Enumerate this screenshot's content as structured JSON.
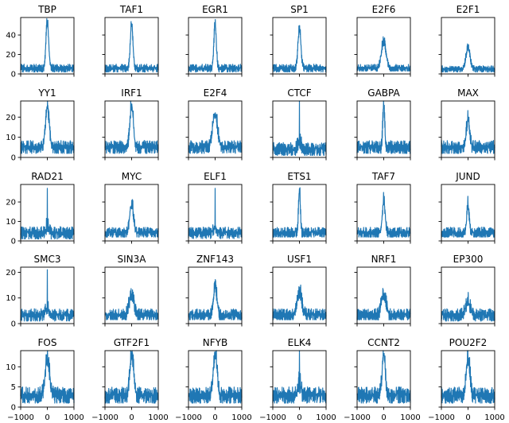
{
  "chart_data": {
    "type": "line",
    "layout": {
      "rows": 5,
      "cols": 6,
      "sharex": true,
      "sharey_per_row": true
    },
    "xlim": [
      -1000,
      1000
    ],
    "x_ticks": [
      -1000,
      0,
      1000
    ],
    "x_tick_labels": [
      "−1000",
      "0",
      "1000"
    ],
    "series_color": "#1f77b4",
    "rows": [
      {
        "ylim": [
          0,
          58
        ],
        "y_ticks": [
          0,
          20,
          40
        ],
        "y_tick_labels": [
          "0",
          "20",
          "40"
        ],
        "panels": [
          {
            "name": "TBP",
            "peak": 55,
            "baseline": 7,
            "noise": 5,
            "dip": 2,
            "width": 50,
            "spike": 0
          },
          {
            "name": "TAF1",
            "peak": 52,
            "baseline": 7,
            "noise": 5,
            "dip": 2,
            "width": 50,
            "spike": 0
          },
          {
            "name": "EGR1",
            "peak": 52,
            "baseline": 7,
            "noise": 5,
            "dip": 2,
            "width": 45,
            "spike": 0
          },
          {
            "name": "SP1",
            "peak": 47,
            "baseline": 7,
            "noise": 5,
            "dip": 2,
            "width": 55,
            "spike": 0
          },
          {
            "name": "E2F6",
            "peak": 34,
            "baseline": 7,
            "noise": 5,
            "dip": 3,
            "width": 90,
            "spike": 0
          },
          {
            "name": "E2F1",
            "peak": 28,
            "baseline": 6,
            "noise": 4,
            "dip": 2,
            "width": 75,
            "spike": 0
          }
        ]
      },
      {
        "ylim": [
          0,
          28
        ],
        "y_ticks": [
          0,
          10,
          20
        ],
        "y_tick_labels": [
          "0",
          "10",
          "20"
        ],
        "panels": [
          {
            "name": "YY1",
            "peak": 26,
            "baseline": 6,
            "noise": 4,
            "dip": 2,
            "width": 70,
            "spike": 0
          },
          {
            "name": "IRF1",
            "peak": 28,
            "baseline": 6,
            "noise": 4,
            "dip": 2,
            "width": 60,
            "spike": 0
          },
          {
            "name": "E2F4",
            "peak": 23,
            "baseline": 6,
            "noise": 4,
            "dip": 2,
            "width": 90,
            "spike": 0
          },
          {
            "name": "CTCF",
            "peak": 9,
            "baseline": 5,
            "noise": 4,
            "dip": 1,
            "width": 60,
            "spike": 28
          },
          {
            "name": "GABPA",
            "peak": 28,
            "baseline": 6,
            "noise": 4,
            "dip": 2,
            "width": 35,
            "spike": 0
          },
          {
            "name": "MAX",
            "peak": 20,
            "baseline": 6,
            "noise": 4,
            "dip": 2,
            "width": 60,
            "spike": 0
          }
        ]
      },
      {
        "ylim": [
          0,
          29
        ],
        "y_ticks": [
          0,
          10,
          20
        ],
        "y_tick_labels": [
          "0",
          "10",
          "20"
        ],
        "panels": [
          {
            "name": "RAD21",
            "peak": 8,
            "baseline": 5,
            "noise": 4,
            "dip": 1,
            "width": 60,
            "spike": 27
          },
          {
            "name": "MYC",
            "peak": 20,
            "baseline": 5,
            "noise": 3.5,
            "dip": 2,
            "width": 70,
            "spike": 0
          },
          {
            "name": "ELF1",
            "peak": 8,
            "baseline": 5,
            "noise": 3.5,
            "dip": 1,
            "width": 60,
            "spike": 27
          },
          {
            "name": "ETS1",
            "peak": 27,
            "baseline": 5,
            "noise": 3.5,
            "dip": 2,
            "width": 35,
            "spike": 0
          },
          {
            "name": "TAF7",
            "peak": 21,
            "baseline": 5,
            "noise": 3.5,
            "dip": 2,
            "width": 55,
            "spike": 0
          },
          {
            "name": "JUND",
            "peak": 19,
            "baseline": 5,
            "noise": 3.5,
            "dip": 2,
            "width": 45,
            "spike": 0
          }
        ]
      },
      {
        "ylim": [
          0,
          22
        ],
        "y_ticks": [
          0,
          10,
          20
        ],
        "y_tick_labels": [
          "0",
          "10",
          "20"
        ],
        "panels": [
          {
            "name": "SMC3",
            "peak": 7,
            "baseline": 4,
            "noise": 3,
            "dip": 1,
            "width": 60,
            "spike": 21
          },
          {
            "name": "SIN3A",
            "peak": 12,
            "baseline": 4,
            "noise": 3,
            "dip": 1.5,
            "width": 90,
            "spike": 0
          },
          {
            "name": "ZNF143",
            "peak": 15,
            "baseline": 4,
            "noise": 3,
            "dip": 1.5,
            "width": 70,
            "spike": 0
          },
          {
            "name": "USF1",
            "peak": 13,
            "baseline": 4,
            "noise": 3,
            "dip": 1.5,
            "width": 90,
            "spike": 0
          },
          {
            "name": "NRF1",
            "peak": 12,
            "baseline": 4,
            "noise": 3,
            "dip": 1.5,
            "width": 90,
            "spike": 0
          },
          {
            "name": "EP300",
            "peak": 9,
            "baseline": 4,
            "noise": 3,
            "dip": 1,
            "width": 90,
            "spike": 0
          }
        ]
      },
      {
        "ylim": [
          0,
          14
        ],
        "y_ticks": [
          0,
          5,
          10
        ],
        "y_tick_labels": [
          "0",
          "5",
          "10"
        ],
        "panels": [
          {
            "name": "FOS",
            "peak": 13,
            "baseline": 3.5,
            "noise": 2.5,
            "dip": 1,
            "width": 80,
            "spike": 0
          },
          {
            "name": "GTF2F1",
            "peak": 14,
            "baseline": 3.5,
            "noise": 2.5,
            "dip": 1,
            "width": 70,
            "spike": 0
          },
          {
            "name": "NFYB",
            "peak": 14,
            "baseline": 3.5,
            "noise": 2.5,
            "dip": 1,
            "width": 70,
            "spike": 0
          },
          {
            "name": "ELK4",
            "peak": 6,
            "baseline": 3.5,
            "noise": 2.5,
            "dip": 1,
            "width": 60,
            "spike": 14
          },
          {
            "name": "CCNT2",
            "peak": 14,
            "baseline": 3.5,
            "noise": 2.5,
            "dip": 1,
            "width": 60,
            "spike": 0
          },
          {
            "name": "POU2F2",
            "peak": 13,
            "baseline": 3.5,
            "noise": 2.5,
            "dip": 1,
            "width": 70,
            "spike": 0
          }
        ]
      }
    ]
  }
}
